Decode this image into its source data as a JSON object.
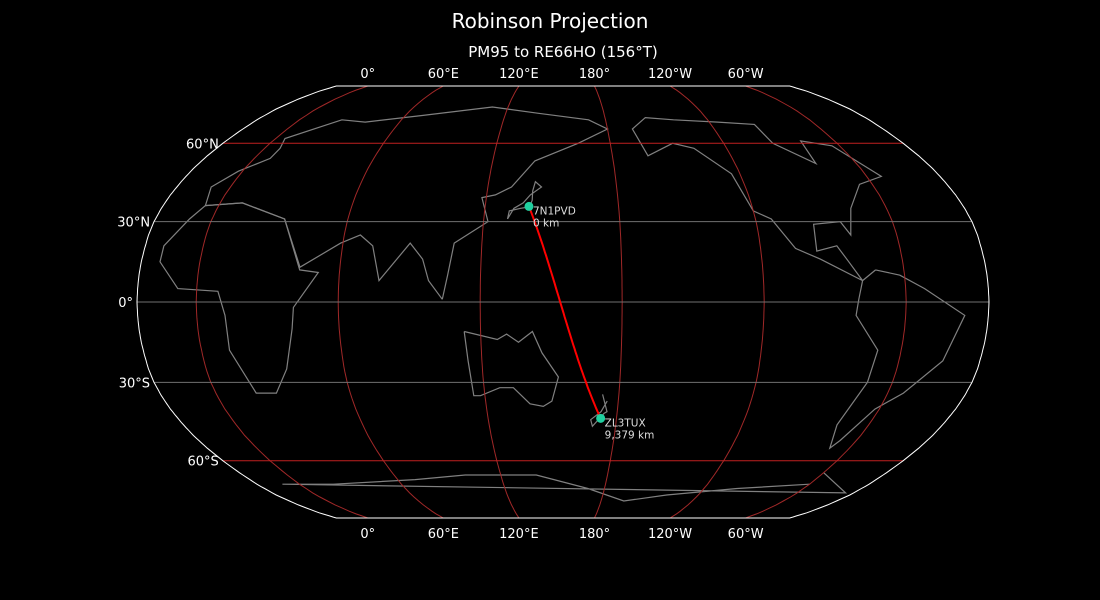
{
  "title": "Robinson Projection",
  "subtitle": "PM95 to RE66HO (156°T)",
  "map": {
    "projection": "Robinson",
    "central_longitude": 155,
    "lon_ticks": [
      "0°",
      "60°E",
      "120°E",
      "180°",
      "120°W",
      "60°W"
    ],
    "lat_ticks": [
      "60°N",
      "30°N",
      "0°",
      "30°S",
      "60°S"
    ],
    "colors": {
      "background": "#000000",
      "coastline": "#808080",
      "meridians": "#a02828",
      "parallels_major": "#c02020",
      "parallels_minor": "#707070",
      "path": "#ff0000",
      "station": "#20d0a0",
      "outline": "#ffffff"
    }
  },
  "stations": [
    {
      "call": "7N1PVD",
      "distance": "0 km",
      "lat": 35.7,
      "lon": 139.7
    },
    {
      "call": "ZL3TUX",
      "distance": "9,379 km",
      "lat": -43.5,
      "lon": 172.6
    }
  ]
}
